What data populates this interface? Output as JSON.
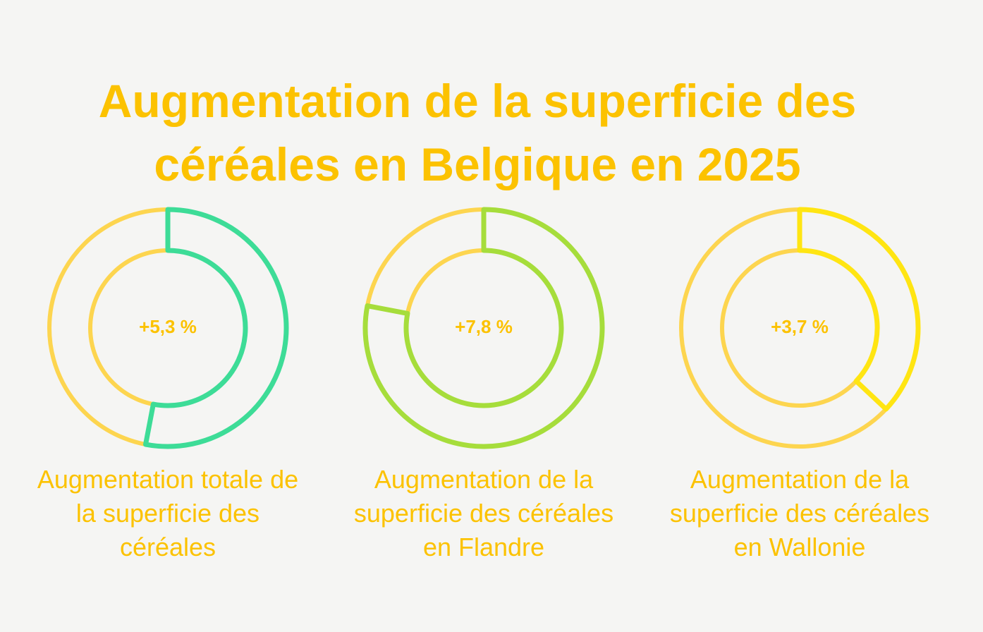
{
  "title": "Augmentation de la superficie des céréales en Belgique en 2025",
  "chart_data": [
    {
      "type": "donut",
      "title": "Augmentation totale de la superficie des céréales",
      "values": [
        5.3
      ],
      "value_labels": [
        "+5,3 %"
      ],
      "color": "#3ddc97",
      "ylim": [
        0,
        10
      ]
    },
    {
      "type": "donut",
      "title": "Augmentation de la superficie des céréales en Flandre",
      "values": [
        7.8
      ],
      "value_labels": [
        "+7,8 %"
      ],
      "color": "#a6dd3b",
      "ylim": [
        0,
        10
      ]
    },
    {
      "type": "donut",
      "title": "Augmentation de la superficie des céréales en Wallonie",
      "values": [
        3.7
      ],
      "value_labels": [
        "+3,7 %"
      ],
      "color": "#ffe512",
      "ylim": [
        0,
        10
      ]
    }
  ]
}
